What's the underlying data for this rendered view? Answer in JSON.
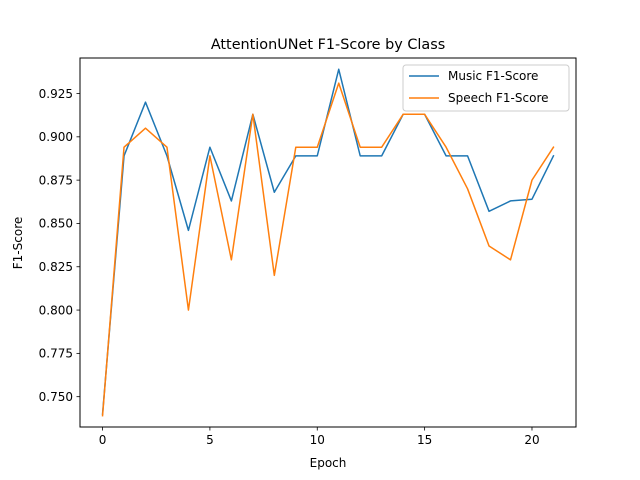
{
  "chart_data": {
    "type": "line",
    "title": "AttentionUNet F1-Score by Class",
    "xlabel": "Epoch",
    "ylabel": "F1-Score",
    "xlim": [
      -1.05,
      22.05
    ],
    "ylim": [
      0.7325,
      0.9455
    ],
    "xticks": [
      0,
      5,
      10,
      15,
      20
    ],
    "xtick_labels": [
      "0",
      "5",
      "10",
      "15",
      "20"
    ],
    "yticks": [
      0.75,
      0.775,
      0.8,
      0.825,
      0.85,
      0.875,
      0.9,
      0.925
    ],
    "ytick_labels": [
      "0.750",
      "0.775",
      "0.800",
      "0.825",
      "0.850",
      "0.875",
      "0.900",
      "0.925"
    ],
    "grid": false,
    "legend_position": "top-right",
    "x": [
      0,
      1,
      2,
      3,
      4,
      5,
      6,
      7,
      8,
      9,
      10,
      11,
      12,
      13,
      14,
      15,
      16,
      17,
      18,
      19,
      20,
      21
    ],
    "series": [
      {
        "name": "Music F1-Score",
        "color": "#1f77b4",
        "values": [
          0.74,
          0.889,
          0.92,
          0.889,
          0.846,
          0.894,
          0.863,
          0.913,
          0.868,
          0.889,
          0.889,
          0.939,
          0.889,
          0.889,
          0.913,
          0.913,
          0.889,
          0.889,
          0.857,
          0.863,
          0.864,
          0.889
        ]
      },
      {
        "name": "Speech F1-Score",
        "color": "#ff7f0e",
        "values": [
          0.739,
          0.894,
          0.905,
          0.894,
          0.8,
          0.889,
          0.829,
          0.913,
          0.82,
          0.894,
          0.894,
          0.931,
          0.894,
          0.894,
          0.913,
          0.913,
          0.894,
          0.87,
          0.837,
          0.829,
          0.875,
          0.894
        ]
      }
    ]
  }
}
